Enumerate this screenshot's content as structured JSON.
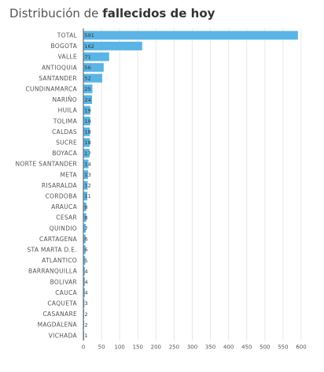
{
  "title": {
    "prefix": "Distribución de",
    "bold": "fallecidos de hoy"
  },
  "chart_data": {
    "type": "bar",
    "orientation": "horizontal",
    "categories": [
      "TOTAL",
      "BOGOTA",
      "VALLE",
      "ANTIOQUIA",
      "SANTANDER",
      "CUNDINAMARCA",
      "NARIÑO",
      "HUILA",
      "TOLIMA",
      "CALDAS",
      "SUCRE",
      "BOYACA",
      "NORTE SANTANDER",
      "META",
      "RISARALDA",
      "CORDOBA",
      "ARAUCA",
      "CESAR",
      "QUINDIO",
      "CARTAGENA",
      "STA MARTA D.E.",
      "ATLANTICO",
      "BARRANQUILLA",
      "BOLIVAR",
      "CAUCA",
      "CAQUETA",
      "CASANARE",
      "MAGDALENA",
      "VICHADA"
    ],
    "values": [
      591,
      162,
      71,
      56,
      52,
      25,
      24,
      19,
      19,
      18,
      18,
      17,
      14,
      13,
      12,
      11,
      8,
      8,
      7,
      6,
      6,
      5,
      4,
      4,
      4,
      3,
      2,
      2,
      1
    ],
    "xlim": [
      0,
      600
    ],
    "xticks": [
      0,
      50,
      100,
      150,
      200,
      250,
      300,
      350,
      400,
      450,
      500,
      550,
      600
    ],
    "bar_color": "#5ab4e5",
    "grid": true
  }
}
